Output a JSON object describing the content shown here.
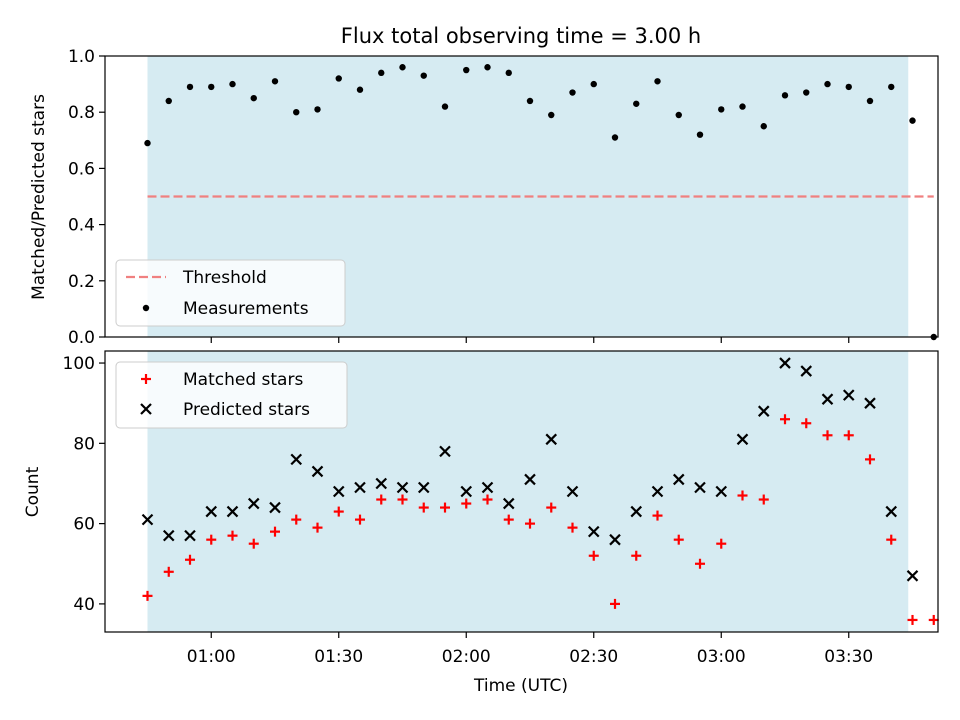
{
  "title": "Flux total observing time = 3.00 h",
  "colors": {
    "shade": "#add8e6",
    "threshold": "#f08080",
    "measurements": "#000000",
    "matched": "#ff0000",
    "predicted": "#000000"
  },
  "chart_data": [
    {
      "type": "scatter",
      "ylabel": "Matched/Predicted stars",
      "ylim": [
        0,
        1.0
      ],
      "yticks": [
        "0.0",
        "0.2",
        "0.4",
        "0.6",
        "0.8",
        "1.0"
      ],
      "shaded_interval": [
        "00:45",
        "03:44"
      ],
      "legend": {
        "placement": "lower-left",
        "entries": [
          "Threshold",
          "Measurements"
        ]
      },
      "series": [
        {
          "name": "Threshold",
          "style": "dashed-line",
          "x": [
            "00:45",
            "03:50"
          ],
          "y": [
            0.5,
            0.5
          ]
        },
        {
          "name": "Measurements",
          "style": "dot",
          "x": [
            "00:45",
            "00:50",
            "00:55",
            "01:00",
            "01:05",
            "01:10",
            "01:15",
            "01:20",
            "01:25",
            "01:30",
            "01:35",
            "01:40",
            "01:45",
            "01:50",
            "01:55",
            "02:00",
            "02:05",
            "02:10",
            "02:15",
            "02:20",
            "02:25",
            "02:30",
            "02:35",
            "02:40",
            "02:45",
            "02:50",
            "02:55",
            "03:00",
            "03:05",
            "03:10",
            "03:15",
            "03:20",
            "03:25",
            "03:30",
            "03:35",
            "03:40",
            "03:45",
            "03:50"
          ],
          "y": [
            0.69,
            0.84,
            0.89,
            0.89,
            0.9,
            0.85,
            0.91,
            0.8,
            0.81,
            0.92,
            0.88,
            0.94,
            0.96,
            0.93,
            0.82,
            0.95,
            0.96,
            0.94,
            0.84,
            0.79,
            0.87,
            0.9,
            0.71,
            0.83,
            0.91,
            0.79,
            0.72,
            0.81,
            0.82,
            0.75,
            0.86,
            0.87,
            0.9,
            0.89,
            0.84,
            0.89,
            0.77,
            0.0
          ]
        }
      ]
    },
    {
      "type": "scatter",
      "xlabel": "Time (UTC)",
      "ylabel": "Count",
      "ylim": [
        33,
        103
      ],
      "yticks": [
        "40",
        "60",
        "80",
        "100"
      ],
      "xticks": [
        "01:00",
        "01:30",
        "02:00",
        "02:30",
        "03:00",
        "03:30"
      ],
      "shaded_interval": [
        "00:45",
        "03:44"
      ],
      "legend": {
        "placement": "upper-left",
        "entries": [
          "Matched stars",
          "Predicted stars"
        ]
      },
      "series": [
        {
          "name": "Matched stars",
          "style": "plus",
          "x": [
            "00:45",
            "00:50",
            "00:55",
            "01:00",
            "01:05",
            "01:10",
            "01:15",
            "01:20",
            "01:25",
            "01:30",
            "01:35",
            "01:40",
            "01:45",
            "01:50",
            "01:55",
            "02:00",
            "02:05",
            "02:10",
            "02:15",
            "02:20",
            "02:25",
            "02:30",
            "02:35",
            "02:40",
            "02:45",
            "02:50",
            "02:55",
            "03:00",
            "03:05",
            "03:10",
            "03:15",
            "03:20",
            "03:25",
            "03:30",
            "03:35",
            "03:40",
            "03:45",
            "03:50"
          ],
          "y": [
            42,
            48,
            51,
            56,
            57,
            55,
            58,
            61,
            59,
            63,
            61,
            66,
            66,
            64,
            64,
            65,
            66,
            61,
            60,
            64,
            59,
            52,
            40,
            52,
            62,
            56,
            50,
            55,
            67,
            66,
            86,
            85,
            82,
            82,
            76,
            56,
            36,
            36
          ]
        },
        {
          "name": "Predicted stars",
          "style": "x",
          "x": [
            "00:45",
            "00:50",
            "00:55",
            "01:00",
            "01:05",
            "01:10",
            "01:15",
            "01:20",
            "01:25",
            "01:30",
            "01:35",
            "01:40",
            "01:45",
            "01:50",
            "01:55",
            "02:00",
            "02:05",
            "02:10",
            "02:15",
            "02:20",
            "02:25",
            "02:30",
            "02:35",
            "02:40",
            "02:45",
            "02:50",
            "02:55",
            "03:00",
            "03:05",
            "03:10",
            "03:15",
            "03:20",
            "03:25",
            "03:30",
            "03:35",
            "03:40",
            "03:45"
          ],
          "y": [
            61,
            57,
            57,
            63,
            63,
            65,
            64,
            76,
            73,
            68,
            69,
            70,
            69,
            69,
            78,
            68,
            69,
            65,
            71,
            81,
            68,
            58,
            56,
            63,
            68,
            71,
            69,
            68,
            81,
            88,
            100,
            98,
            91,
            92,
            90,
            63,
            47
          ]
        }
      ]
    }
  ]
}
